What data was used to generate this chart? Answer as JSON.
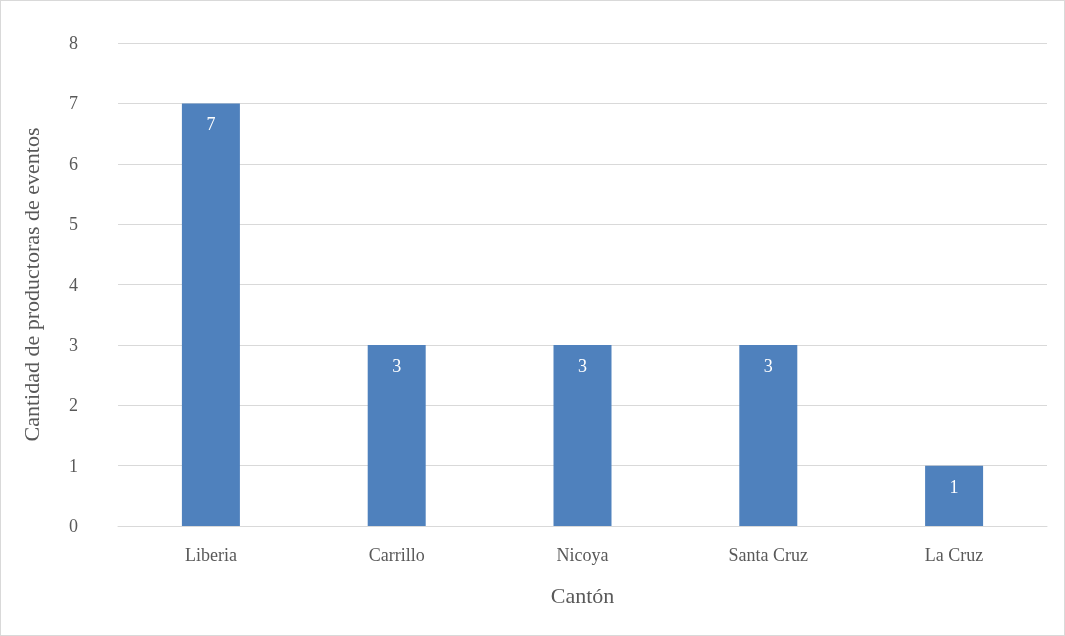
{
  "chart_data": {
    "type": "bar",
    "xlabel": "Cantón",
    "ylabel": "Cantidad de productoras de eventos",
    "categories": [
      "Liberia",
      "Carrillo",
      "Nicoya",
      "Santa Cruz",
      "La Cruz"
    ],
    "values": [
      7,
      3,
      3,
      3,
      1
    ],
    "color": "#4f81bd",
    "ylim": [
      0,
      8
    ],
    "yticks": [
      0,
      1,
      2,
      3,
      4,
      5,
      6,
      7,
      8
    ],
    "grid": "y",
    "data_labels": true
  }
}
